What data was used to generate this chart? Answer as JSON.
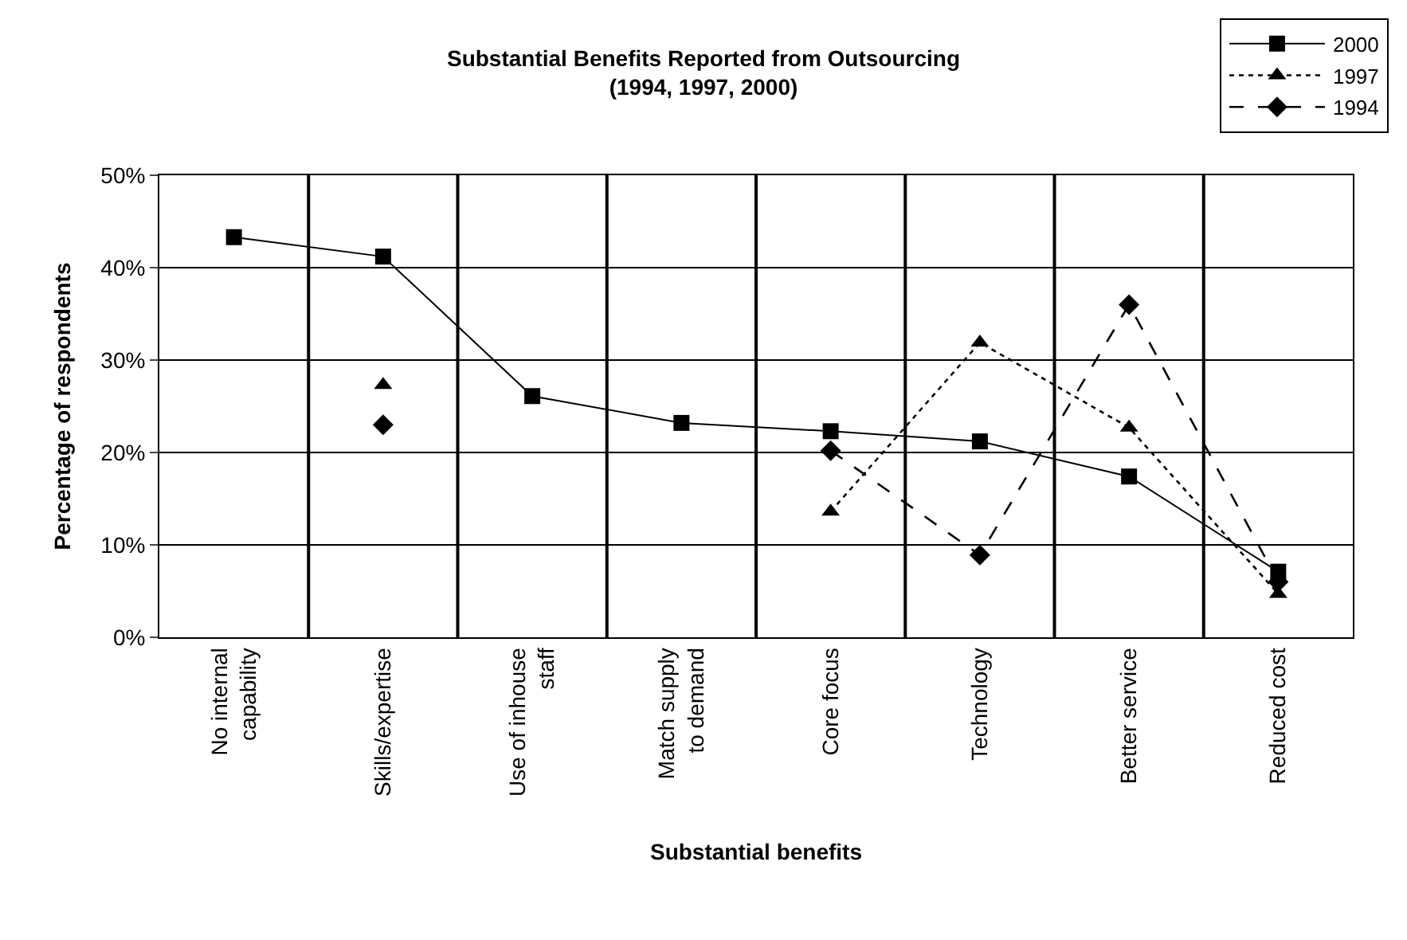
{
  "chart_data": {
    "type": "line",
    "title": "Substantial Benefits Reported from Outsourcing\n(1994, 1997, 2000)",
    "xlabel": "Substantial benefits",
    "ylabel": "Percentage of respondents",
    "categories": [
      "No internal\ncapability",
      "Skills/expertise",
      "Use of inhouse\nstaff",
      "Match supply\nto demand",
      "Core focus",
      "Technology",
      "Better service",
      "Reduced cost"
    ],
    "series": [
      {
        "name": "2000",
        "color": "#000000",
        "marker": "square",
        "line_style": "solid",
        "values": [
          43.3,
          41.2,
          26.1,
          23.2,
          22.3,
          21.2,
          17.4,
          7.1
        ]
      },
      {
        "name": "1997",
        "color": "#000000",
        "marker": "triangle",
        "line_style": "dotted",
        "values": [
          null,
          27.3,
          null,
          null,
          13.6,
          31.9,
          22.7,
          4.7
        ]
      },
      {
        "name": "1994",
        "color": "#000000",
        "marker": "diamond",
        "line_style": "dashed",
        "values": [
          null,
          23.0,
          null,
          null,
          20.2,
          8.9,
          36.0,
          6.0
        ]
      }
    ],
    "ylim": [
      0,
      50
    ],
    "yticks": [
      {
        "value": 0,
        "label": "0%"
      },
      {
        "value": 10,
        "label": "10%"
      },
      {
        "value": 20,
        "label": "20%"
      },
      {
        "value": 30,
        "label": "30%"
      },
      {
        "value": 40,
        "label": "40%"
      },
      {
        "value": 50,
        "label": "50%"
      }
    ],
    "grid": true,
    "legend": "top right"
  }
}
